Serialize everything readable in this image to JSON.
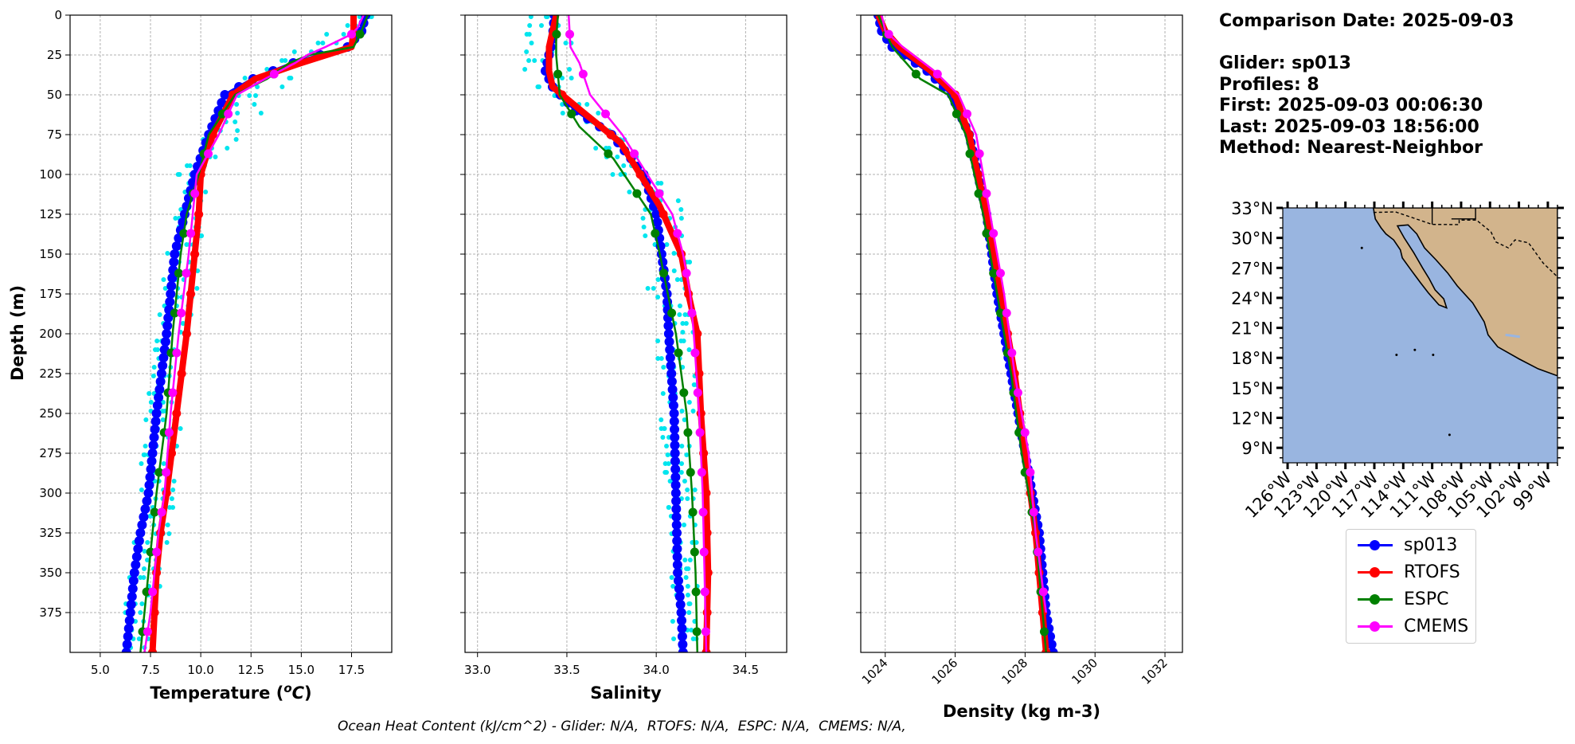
{
  "info": {
    "comparison_date": "Comparison Date: 2025-09-03",
    "glider": "Glider: sp013",
    "profiles": "Profiles: 8",
    "first": "First: 2025-09-03 00:06:30",
    "last": "Last: 2025-09-03 18:56:00",
    "method": "Method: Nearest-Neighbor"
  },
  "footer": "Ocean Heat Content (kJ/cm^2) - Glider: N/A,  RTOFS: N/A,  ESPC: N/A,  CMEMS: N/A,",
  "legend": [
    {
      "name": "sp013",
      "color": "#0000ff"
    },
    {
      "name": "RTOFS",
      "color": "#ff0000"
    },
    {
      "name": "ESPC",
      "color": "#008000"
    },
    {
      "name": "CMEMS",
      "color": "#ff00ff"
    }
  ],
  "colors": {
    "raw_profiles": "#00e5ee",
    "ocean": "#99b5e0",
    "land": "#d2b48c"
  },
  "chart_data": [
    {
      "type": "line",
      "xlabel": "Temperature ($^{o}C$)",
      "ylabel": "Depth (m)",
      "xlim": [
        3.5,
        19.5
      ],
      "ylim": [
        400,
        0
      ],
      "xticks": [
        "5.0",
        "7.5",
        "10.0",
        "12.5",
        "15.0",
        "17.5"
      ],
      "yticks": [
        "0",
        "25",
        "50",
        "75",
        "100",
        "125",
        "150",
        "175",
        "200",
        "225",
        "250",
        "275",
        "300",
        "325",
        "350",
        "375"
      ],
      "grid": true,
      "series": [
        {
          "name": "sp013",
          "x": [
            18.2,
            18.0,
            17.3,
            14.6,
            12.6,
            11.2,
            10.4,
            9.7,
            9.2,
            8.7,
            8.3,
            7.8,
            7.4,
            7.0,
            6.7,
            6.5,
            6.3
          ],
          "y": [
            0,
            10,
            20,
            30,
            40,
            50,
            75,
            100,
            125,
            150,
            200,
            250,
            300,
            325,
            350,
            375,
            400
          ]
        },
        {
          "name": "RTOFS",
          "x": [
            17.6,
            17.6,
            17.5,
            15.0,
            12.7,
            11.6,
            10.6,
            10.0,
            9.9,
            9.7,
            9.3,
            8.8,
            8.3,
            8.0,
            7.8,
            7.6
          ],
          "y": [
            0,
            10,
            20,
            30,
            40,
            50,
            75,
            100,
            125,
            150,
            200,
            250,
            300,
            325,
            350,
            400
          ]
        },
        {
          "name": "ESPC",
          "x": [
            18.3,
            18.0,
            17.6,
            15.4,
            14.4,
            13.3,
            11.7,
            10.4,
            9.9,
            9.3,
            9.0,
            8.6,
            8.3,
            7.8,
            7.4,
            7.0
          ],
          "y": [
            0,
            10,
            20,
            25,
            30,
            40,
            50,
            75,
            100,
            125,
            150,
            200,
            250,
            300,
            350,
            400
          ]
        },
        {
          "name": "CMEMS",
          "x": [
            18.1,
            17.8,
            17.5,
            16.2,
            15.3,
            14.7,
            13.2,
            11.8,
            10.9,
            9.8,
            9.6,
            9.4,
            8.9,
            8.5,
            8.2,
            7.9,
            7.5,
            7.2
          ],
          "y": [
            0,
            8,
            12,
            20,
            25,
            30,
            40,
            50,
            75,
            100,
            125,
            150,
            200,
            250,
            300,
            325,
            375,
            400
          ]
        }
      ],
      "raw_profiles_x_range": [
        [
          17.9,
          19.2,
          0
        ],
        [
          12.0,
          14.5,
          40
        ],
        [
          8.8,
          10.4,
          100
        ],
        [
          7.8,
          9.6,
          200
        ],
        [
          6.8,
          8.8,
          300
        ],
        [
          6.0,
          7.4,
          400
        ]
      ]
    },
    {
      "type": "line",
      "xlabel": "Salinity",
      "xlim": [
        32.93,
        34.73
      ],
      "ylim": [
        400,
        0
      ],
      "xticks": [
        "33.0",
        "33.5",
        "34.0",
        "34.5"
      ],
      "grid": true,
      "series": [
        {
          "name": "sp013",
          "x": [
            33.43,
            33.42,
            33.4,
            33.38,
            33.42,
            33.55,
            33.75,
            33.93,
            34.0,
            34.03,
            34.06,
            34.07,
            34.1,
            34.11,
            34.12,
            34.14,
            34.15
          ],
          "y": [
            0,
            15,
            25,
            35,
            45,
            60,
            75,
            100,
            125,
            150,
            175,
            200,
            250,
            300,
            350,
            375,
            400
          ]
        },
        {
          "name": "RTOFS",
          "x": [
            33.44,
            33.4,
            33.4,
            33.42,
            33.58,
            33.8,
            34.02,
            34.14,
            34.18,
            34.23,
            34.25,
            34.28,
            34.29,
            34.28
          ],
          "y": [
            0,
            20,
            35,
            45,
            60,
            80,
            120,
            150,
            175,
            200,
            250,
            300,
            350,
            400
          ]
        },
        {
          "name": "ESPC",
          "x": [
            33.45,
            33.44,
            33.44,
            33.46,
            33.57,
            33.76,
            33.97,
            34.02,
            34.11,
            34.17,
            34.2,
            34.22,
            34.23
          ],
          "y": [
            0,
            15,
            25,
            50,
            70,
            90,
            125,
            150,
            200,
            250,
            300,
            350,
            400
          ]
        },
        {
          "name": "CMEMS",
          "x": [
            33.51,
            33.52,
            33.57,
            33.63,
            33.81,
            34.09,
            34.15,
            34.19,
            34.21,
            34.24,
            34.26,
            34.27,
            34.28
          ],
          "y": [
            0,
            20,
            30,
            50,
            75,
            125,
            150,
            175,
            200,
            250,
            300,
            350,
            400
          ]
        }
      ],
      "raw_profiles_x_range": [
        [
          33.3,
          33.5,
          0
        ],
        [
          33.22,
          33.55,
          30
        ],
        [
          33.45,
          33.7,
          60
        ],
        [
          33.9,
          34.15,
          120
        ],
        [
          33.98,
          34.24,
          200
        ],
        [
          34.06,
          34.22,
          300
        ],
        [
          34.1,
          34.24,
          400
        ]
      ]
    },
    {
      "type": "line",
      "xlabel": "Density (kg m-3)",
      "xlim": [
        1023.3,
        1032.5
      ],
      "ylim": [
        400,
        0
      ],
      "xticks": [
        "1024",
        "1026",
        "1028",
        "1030",
        "1032"
      ],
      "grid": true,
      "series": [
        {
          "name": "sp013",
          "x": [
            1023.8,
            1023.9,
            1024.2,
            1025.2,
            1025.9,
            1026.4,
            1026.9,
            1027.2,
            1027.6,
            1028.0,
            1028.4,
            1028.6,
            1028.8
          ],
          "y": [
            0,
            10,
            20,
            35,
            50,
            75,
            125,
            175,
            225,
            275,
            325,
            375,
            400
          ]
        },
        {
          "name": "RTOFS",
          "x": [
            1023.8,
            1024.0,
            1024.4,
            1025.3,
            1026.0,
            1026.4,
            1026.9,
            1027.3,
            1027.7,
            1028.0,
            1028.3,
            1028.6
          ],
          "y": [
            0,
            10,
            20,
            35,
            50,
            75,
            125,
            175,
            225,
            275,
            325,
            400
          ]
        },
        {
          "name": "ESPC",
          "x": [
            1023.8,
            1024.2,
            1025.0,
            1025.8,
            1026.3,
            1026.8,
            1027.2,
            1027.6,
            1027.9,
            1028.3,
            1028.6
          ],
          "y": [
            0,
            20,
            40,
            50,
            75,
            125,
            175,
            225,
            275,
            325,
            400
          ]
        },
        {
          "name": "CMEMS",
          "x": [
            1023.9,
            1024.0,
            1024.5,
            1025.4,
            1026.1,
            1026.6,
            1027.0,
            1027.4,
            1027.7,
            1028.1,
            1028.3,
            1028.6
          ],
          "y": [
            0,
            10,
            20,
            35,
            50,
            75,
            125,
            175,
            225,
            275,
            325,
            375
          ]
        }
      ]
    },
    {
      "type": "map",
      "lat_ticks": [
        "33°N",
        "30°N",
        "27°N",
        "24°N",
        "21°N",
        "18°N",
        "15°N",
        "12°N",
        "9°N"
      ],
      "lon_ticks": [
        "126°W",
        "123°W",
        "120°W",
        "117°W",
        "114°W",
        "111°W",
        "108°W",
        "105°W",
        "102°W",
        "99°W"
      ],
      "lat_range": [
        7.5,
        33
      ],
      "lon_range": [
        -126.5,
        -98
      ]
    }
  ]
}
